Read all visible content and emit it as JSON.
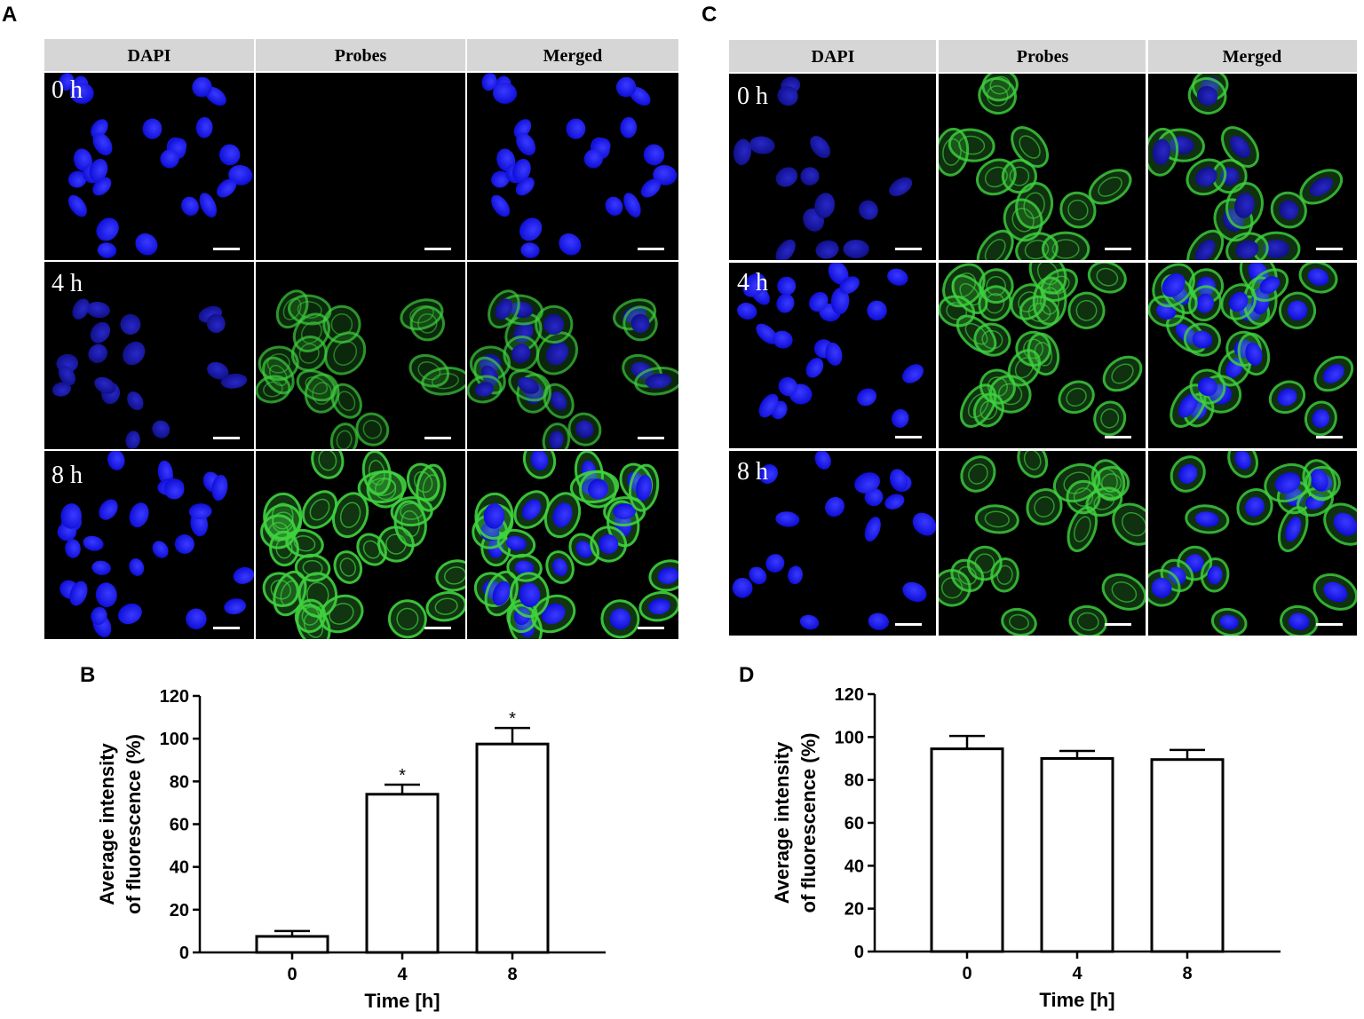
{
  "panels": {
    "A": "A",
    "B": "B",
    "C": "C",
    "D": "D"
  },
  "headers": {
    "A": [
      "DAPI",
      "Probes",
      "Merged"
    ],
    "C": [
      "DAPI",
      "Probes",
      "Merged"
    ]
  },
  "time_labels": [
    "0 h",
    "4 h",
    "8 h"
  ],
  "colors": {
    "header_bg": "#d6d6d6",
    "dapi_blue": "#1a1aff",
    "probe_green": "#3fd23f",
    "micrograph_bg": "#000000",
    "scale_bar": "#ffffff"
  },
  "chart_data": [
    {
      "panel": "B",
      "type": "bar",
      "categories": [
        "0",
        "4",
        "8"
      ],
      "values": [
        7.5,
        74,
        97.5
      ],
      "errors": [
        2.5,
        4.5,
        7.5
      ],
      "significance": [
        "",
        "*",
        "*"
      ],
      "xlabel": "Time [h]",
      "ylabel_lines": [
        "Average intensity",
        "of fluorescence (%)"
      ],
      "ylim": [
        0,
        120
      ],
      "yticks": [
        0,
        20,
        40,
        60,
        80,
        100,
        120
      ]
    },
    {
      "panel": "D",
      "type": "bar",
      "categories": [
        "0",
        "4",
        "8"
      ],
      "values": [
        94.5,
        90,
        89.5
      ],
      "errors": [
        6,
        3.5,
        4.5
      ],
      "significance": [
        "",
        "",
        ""
      ],
      "xlabel": "Time [h]",
      "ylabel_lines": [
        "Average intensity",
        "of fluorescence (%)"
      ],
      "ylim": [
        0,
        120
      ],
      "yticks": [
        0,
        20,
        40,
        60,
        80,
        100,
        120
      ]
    }
  ]
}
